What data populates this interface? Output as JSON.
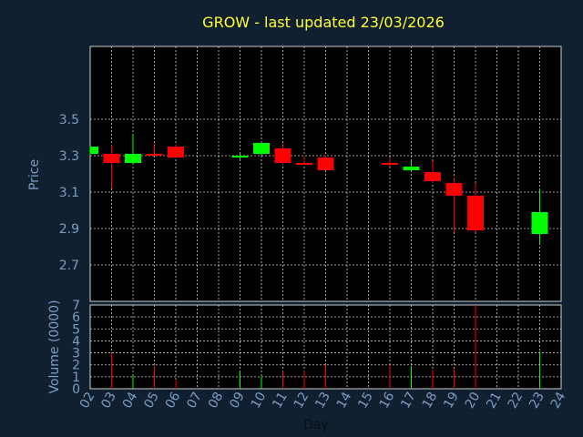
{
  "chart_data": {
    "type": "candlestick",
    "title": "GROW - last updated 23/03/2026",
    "xlabel": "Day",
    "ylabel_price": "Price",
    "ylabel_volume": "Volume (0000)",
    "x_ticks": [
      "02",
      "03",
      "04",
      "05",
      "06",
      "07",
      "08",
      "09",
      "10",
      "11",
      "12",
      "13",
      "14",
      "15",
      "16",
      "17",
      "18",
      "19",
      "20",
      "21",
      "22",
      "23",
      "24"
    ],
    "price_ticks": [
      "2.7",
      "2.9",
      "3.1",
      "3.3",
      "3.5"
    ],
    "price_ylim": [
      2.5,
      3.9
    ],
    "volume_ticks": [
      "0",
      "1",
      "2",
      "3",
      "4",
      "5",
      "6",
      "7"
    ],
    "volume_ylim": [
      0,
      7
    ],
    "grid": true,
    "colors": {
      "background": "#102030",
      "plot_bg": "#000000",
      "up": "#00ff00",
      "down": "#ff0000",
      "grid": "#cccccc",
      "title": "#ffff33",
      "axis_text": "#7d9cc2"
    },
    "candles": [
      {
        "day": 2,
        "open": 3.31,
        "high": 3.35,
        "low": 3.3,
        "close": 3.35,
        "volume": 0.0
      },
      {
        "day": 3,
        "open": 3.31,
        "high": 3.36,
        "low": 3.12,
        "close": 3.26,
        "volume": 3.0
      },
      {
        "day": 4,
        "open": 3.26,
        "high": 3.42,
        "low": 3.25,
        "close": 3.31,
        "volume": 1.2
      },
      {
        "day": 5,
        "open": 3.31,
        "high": 3.37,
        "low": 3.3,
        "close": 3.3,
        "volume": 1.8
      },
      {
        "day": 6,
        "open": 3.35,
        "high": 3.36,
        "low": 3.29,
        "close": 3.29,
        "volume": 0.7
      },
      {
        "day": 9,
        "open": 3.29,
        "high": 3.31,
        "low": 3.28,
        "close": 3.3,
        "volume": 1.4
      },
      {
        "day": 10,
        "open": 3.31,
        "high": 3.37,
        "low": 3.3,
        "close": 3.37,
        "volume": 1.0
      },
      {
        "day": 11,
        "open": 3.34,
        "high": 3.37,
        "low": 3.25,
        "close": 3.26,
        "volume": 1.5
      },
      {
        "day": 12,
        "open": 3.26,
        "high": 3.3,
        "low": 3.25,
        "close": 3.25,
        "volume": 1.5
      },
      {
        "day": 13,
        "open": 3.29,
        "high": 3.3,
        "low": 3.22,
        "close": 3.22,
        "volume": 2.0
      },
      {
        "day": 16,
        "open": 3.26,
        "high": 3.29,
        "low": 3.24,
        "close": 3.25,
        "volume": 2.0
      },
      {
        "day": 17,
        "open": 3.22,
        "high": 3.27,
        "low": 3.21,
        "close": 3.24,
        "volume": 1.9
      },
      {
        "day": 18,
        "open": 3.21,
        "high": 3.27,
        "low": 3.15,
        "close": 3.16,
        "volume": 1.6
      },
      {
        "day": 19,
        "open": 3.15,
        "high": 3.18,
        "low": 2.88,
        "close": 3.08,
        "volume": 1.7
      },
      {
        "day": 20,
        "open": 3.08,
        "high": 3.15,
        "low": 2.88,
        "close": 2.89,
        "volume": 7.0
      },
      {
        "day": 23,
        "open": 2.87,
        "high": 3.12,
        "low": 2.82,
        "close": 2.99,
        "volume": 3.1
      }
    ]
  }
}
